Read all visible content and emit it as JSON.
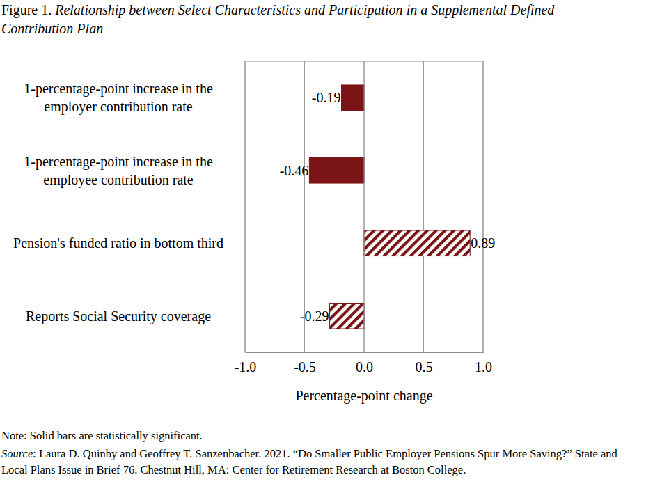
{
  "chart_data": {
    "type": "bar",
    "orientation": "horizontal",
    "title": "Figure 1. Relationship between Select Characteristics and Participation in a Supplemental Defined Contribution Plan",
    "categories": [
      "1-percentage-point increase in the employer contribution rate",
      "1-percentage-point increase in the employee contribution rate",
      "Pension's funded ratio in bottom third",
      "Reports Social Security coverage"
    ],
    "values": [
      -0.19,
      -0.46,
      0.89,
      -0.29
    ],
    "significant": [
      true,
      true,
      false,
      false
    ],
    "color": "#7b1416",
    "xlim": [
      -1,
      1
    ],
    "xticks": [
      {
        "value": -1,
        "label": "-1.0"
      },
      {
        "value": -0.5,
        "label": "-0.5"
      },
      {
        "value": 0,
        "label": "0.0"
      },
      {
        "value": 0.5,
        "label": "0.5"
      },
      {
        "value": 1,
        "label": "1.0"
      }
    ],
    "xlabel": "Percentage-point change",
    "grid": true,
    "data_labels": true,
    "note": "Note: Solid bars are statistically significant.",
    "source": "Source: Laura D. Quinby and Geoffrey T. Sanzenbacher. 2021. “Do Smaller Public Employer Pensions Spur More Saving?” State and Local Plans Issue in Brief 76. Chestnut Hill, MA: Center for Retirement Research at Boston College."
  }
}
